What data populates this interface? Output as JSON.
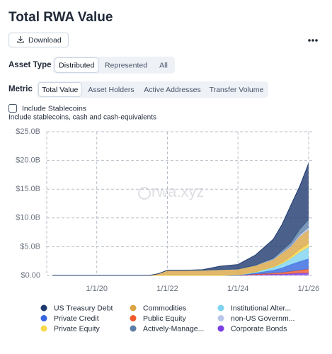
{
  "header": {
    "title": "Total RWA Value",
    "download": "Download"
  },
  "filters": {
    "asset_type": {
      "label": "Asset Type",
      "options": [
        "Distributed",
        "Represented",
        "All"
      ],
      "selected": 0
    },
    "metric": {
      "label": "Metric",
      "options": [
        "Total Value",
        "Asset Holders",
        "Active Addresses",
        "Transfer Volume"
      ],
      "selected": 0
    }
  },
  "stablecoins": {
    "label": "Include Stablecoins",
    "checked": false,
    "description": "Include stablecoins, cash and cash-equivalents"
  },
  "chart_data": {
    "type": "stacked-area",
    "watermark": "rwa.xyz",
    "x": [
      "2018-10-01",
      "2019-07-01",
      "2020-07-01",
      "2021-07-01",
      "2021-10-01",
      "2022-01-01",
      "2022-07-01",
      "2023-01-01",
      "2023-07-01",
      "2024-01-01",
      "2024-07-01",
      "2025-01-01",
      "2025-04-01",
      "2025-07-01",
      "2025-10-01",
      "2026-01-01"
    ],
    "xlim": [
      "2018-08-01",
      "2026-03-01"
    ],
    "xticks": [
      {
        "value": "2020-01-01",
        "label": "1/1/20"
      },
      {
        "value": "2022-01-01",
        "label": "1/1/22"
      },
      {
        "value": "2024-01-01",
        "label": "1/1/24"
      },
      {
        "value": "2026-01-01",
        "label": "1/1/26"
      }
    ],
    "ylim": [
      0,
      25
    ],
    "yticks": [
      {
        "value": 0,
        "label": "$0.00"
      },
      {
        "value": 5,
        "label": "$5.0B"
      },
      {
        "value": 10,
        "label": "$10.0B"
      },
      {
        "value": 15,
        "label": "$15.0B"
      },
      {
        "value": 20,
        "label": "$20.0B"
      },
      {
        "value": 25,
        "label": "$25.0B"
      }
    ],
    "grid": true,
    "series": [
      {
        "name": "US Treasury Debt",
        "color": "#1e3a6e",
        "values": [
          0,
          0,
          0,
          0,
          0,
          0,
          0,
          0.1,
          0.6,
          0.8,
          1.8,
          3.3,
          4.5,
          6.5,
          7.5,
          9.8
        ]
      },
      {
        "name": "Commodities",
        "color": "#d9a545",
        "values": [
          0,
          0,
          0,
          0,
          0.3,
          0.9,
          0.9,
          0.9,
          1.0,
          1.0,
          1.1,
          1.2,
          1.6,
          1.7,
          2.2,
          2.4
        ]
      },
      {
        "name": "Institutional Alter...",
        "color": "#7dd3f0",
        "values": [
          0,
          0,
          0,
          0,
          0,
          0,
          0,
          0,
          0,
          0.1,
          0.2,
          0.5,
          0.7,
          1.0,
          1.6,
          2.0
        ]
      },
      {
        "name": "Private Credit",
        "color": "#3566e0",
        "values": [
          0,
          0,
          0,
          0,
          0,
          0,
          0,
          0,
          0,
          0,
          0.2,
          0.5,
          0.8,
          1.2,
          1.5,
          1.8
        ]
      },
      {
        "name": "Public Equity",
        "color": "#f0592a",
        "values": [
          0,
          0,
          0,
          0,
          0,
          0,
          0,
          0,
          0,
          0,
          0.1,
          0.2,
          0.3,
          0.4,
          0.5,
          0.7
        ]
      },
      {
        "name": "non-US Governm...",
        "color": "#b9c6ea",
        "values": [
          0,
          0,
          0,
          0,
          0,
          0,
          0,
          0,
          0,
          0,
          0.05,
          0.1,
          0.15,
          0.2,
          0.3,
          0.4
        ]
      },
      {
        "name": "Private Equity",
        "color": "#f7d84a",
        "values": [
          0,
          0,
          0,
          0,
          0,
          0,
          0,
          0,
          0,
          0,
          0,
          0.1,
          0.2,
          0.3,
          0.5,
          0.6
        ]
      },
      {
        "name": "Actively-Manage...",
        "color": "#5b7ea6",
        "values": [
          0,
          0,
          0,
          0,
          0,
          0,
          0,
          0,
          0,
          0,
          0,
          0.2,
          0.4,
          0.6,
          1.0,
          1.4
        ]
      },
      {
        "name": "Corporate Bonds",
        "color": "#7b3fe4",
        "values": [
          0,
          0,
          0,
          0,
          0,
          0,
          0,
          0,
          0,
          0,
          0.1,
          0.2,
          0.2,
          0.3,
          0.4,
          0.4
        ]
      }
    ]
  }
}
